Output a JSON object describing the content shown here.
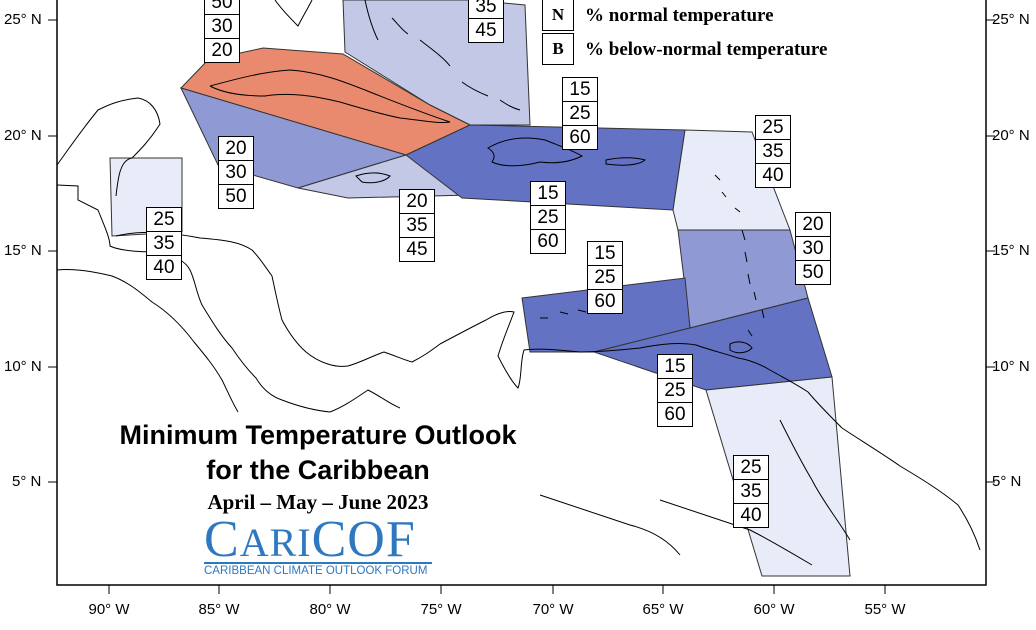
{
  "title": {
    "line1": "Minimum Temperature Outlook",
    "line2": "for the Caribbean",
    "period": "April – May – June 2023"
  },
  "logo": {
    "main_big1": "C",
    "main_small": "ARI",
    "main_big2": "COF",
    "subtitle": "CARIBBEAN CLIMATE OUTLOOK FORUM"
  },
  "legend": [
    {
      "key": "N",
      "text": "% normal temperature"
    },
    {
      "key": "B",
      "text": "% below-normal temperature"
    }
  ],
  "lat_labels": [
    "25° N",
    "20° N",
    "15° N",
    "10° N",
    "5° N"
  ],
  "lon_labels": [
    "90° W",
    "85° W",
    "80° W",
    "75° W",
    "70° W",
    "65° W",
    "60° W",
    "55° W"
  ],
  "colors": {
    "light_blue": "#e8ecf8",
    "mid_light_blue": "#c2c8e6",
    "mid_blue": "#8f99d4",
    "dark_blue": "#6472c4",
    "orange": "#e98a6e"
  },
  "forecast_boxes": [
    {
      "region": "cuba",
      "values": [
        "50",
        "30",
        "20"
      ]
    },
    {
      "region": "bahamas",
      "values": [
        "35",
        "45"
      ]
    },
    {
      "region": "belize",
      "values": [
        "25",
        "35",
        "40"
      ]
    },
    {
      "region": "cayman",
      "values": [
        "20",
        "30",
        "50"
      ]
    },
    {
      "region": "jamaica",
      "values": [
        "20",
        "35",
        "45"
      ]
    },
    {
      "region": "hispaniola",
      "values": [
        "15",
        "25",
        "60"
      ]
    },
    {
      "region": "puerto-rico",
      "values": [
        "15",
        "25",
        "60"
      ]
    },
    {
      "region": "northern-leewards",
      "values": [
        "25",
        "35",
        "40"
      ]
    },
    {
      "region": "windwards",
      "values": [
        "20",
        "30",
        "50"
      ]
    },
    {
      "region": "abc-islands",
      "values": [
        "15",
        "25",
        "60"
      ]
    },
    {
      "region": "trinidad-barbados",
      "values": [
        "15",
        "25",
        "60"
      ]
    },
    {
      "region": "guianas",
      "values": [
        "25",
        "35",
        "40"
      ]
    }
  ]
}
